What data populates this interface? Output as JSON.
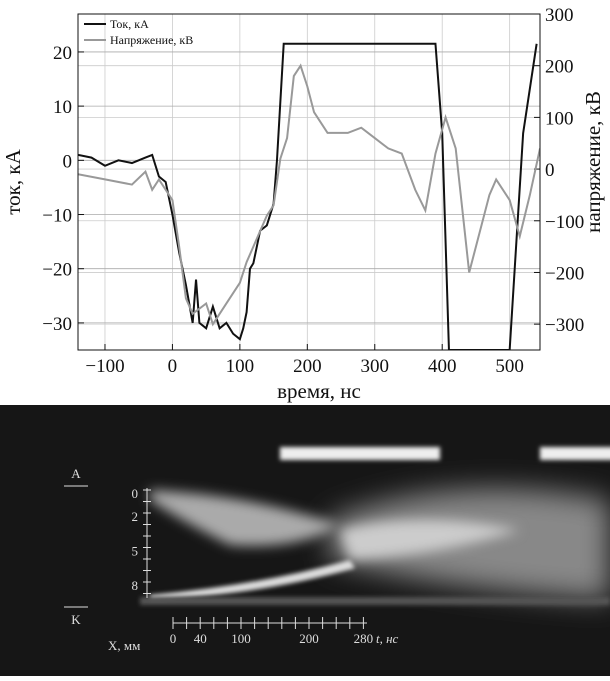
{
  "chart_data": {
    "type": "line",
    "x_label": "время, нс",
    "y_label": "ток, кА",
    "y2_label": "напряжение, кВ",
    "xlim": [
      -140,
      545
    ],
    "ylim": [
      -35,
      27
    ],
    "y2lim": [
      -350,
      300
    ],
    "xticks": [
      {
        "value": -100,
        "label": "−100"
      },
      0,
      100,
      200,
      300,
      400,
      500
    ],
    "yticks": [
      {
        "value": -30,
        "label": "−30"
      },
      {
        "value": -20,
        "label": "−20"
      },
      {
        "value": -10,
        "label": "−10"
      },
      0,
      10,
      20
    ],
    "y2ticks": [
      {
        "value": -300,
        "label": "−300"
      },
      {
        "value": -200,
        "label": "−200"
      },
      {
        "value": -100,
        "label": "−100"
      },
      0,
      100,
      200,
      300
    ],
    "grid": true,
    "legend": "upper-left",
    "series": [
      {
        "name": "Ток, кА",
        "color": "#111111",
        "x": [
          -140,
          -120,
          -100,
          -80,
          -60,
          -40,
          -30,
          -25,
          -20,
          -10,
          0,
          10,
          20,
          30,
          35,
          40,
          50,
          60,
          70,
          80,
          90,
          100,
          105,
          110,
          115,
          120,
          130,
          140,
          150,
          155,
          165,
          390,
          400,
          410,
          500,
          520,
          540
        ],
        "values": [
          1,
          0.5,
          -1,
          0,
          -0.5,
          0.5,
          1,
          -1,
          -3,
          -4,
          -10,
          -17,
          -23,
          -30,
          -22,
          -30,
          -31,
          -27,
          -31,
          -30,
          -32,
          -33,
          -31,
          -28,
          -20,
          -19,
          -13,
          -12,
          -8,
          0,
          21.5,
          21.5,
          5,
          -35,
          -35,
          5,
          21.5
        ]
      },
      {
        "name": "Напряжение, кВ",
        "color": "#999999",
        "axis": "y2",
        "x": [
          -140,
          -100,
          -60,
          -40,
          -30,
          -20,
          0,
          10,
          20,
          30,
          50,
          60,
          80,
          100,
          110,
          120,
          130,
          140,
          150,
          160,
          170,
          180,
          190,
          200,
          210,
          230,
          260,
          280,
          300,
          320,
          340,
          360,
          375,
          390,
          405,
          420,
          440,
          450,
          470,
          480,
          500,
          515,
          530,
          545
        ],
        "values": [
          -10,
          -20,
          -30,
          -5,
          -40,
          -20,
          -60,
          -150,
          -250,
          -280,
          -260,
          -300,
          -260,
          -220,
          -180,
          -150,
          -120,
          -90,
          -70,
          20,
          60,
          180,
          200,
          160,
          110,
          70,
          70,
          80,
          60,
          40,
          30,
          -40,
          -80,
          30,
          100,
          40,
          -200,
          -150,
          -50,
          -20,
          -60,
          -130,
          -50,
          40
        ]
      }
    ]
  },
  "streak_image": {
    "anode": "A",
    "cathode": "K",
    "x_axis_label": "X, мм",
    "t_axis_label": "t, нс",
    "x_tick_labels": [
      "0",
      "2",
      "5",
      "8"
    ],
    "t_tick_labels": [
      "0",
      "40",
      "100",
      "200",
      "280"
    ]
  }
}
